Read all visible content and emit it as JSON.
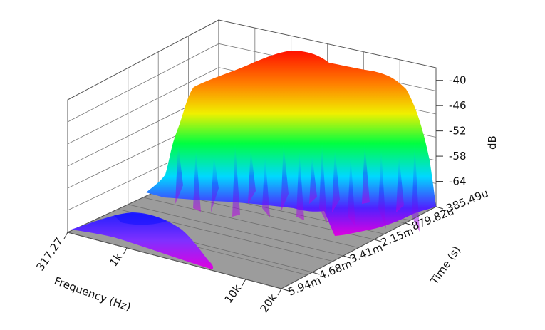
{
  "chart_data": {
    "type": "surface-3d",
    "title": "",
    "xlabel": "Frequency (Hz)",
    "ylabel": "Time (s)",
    "zlabel": "dB",
    "x_ticks": [
      "317.27",
      "1k",
      "10k",
      "20k"
    ],
    "y_ticks": [
      "-385.49u",
      "879.82u",
      "2.15m",
      "3.41m",
      "4.68m",
      "5.94m"
    ],
    "z_ticks": [
      "-40",
      "-46",
      "-52",
      "-58",
      "-64"
    ],
    "z_range": [
      -70,
      -37
    ],
    "grid": true,
    "colormap": [
      "#e000e0",
      "#3030ff",
      "#00e0ff",
      "#00ff40",
      "#f0f000",
      "#ff8000",
      "#ff0000"
    ],
    "floor_color": "#9c9c9c"
  }
}
